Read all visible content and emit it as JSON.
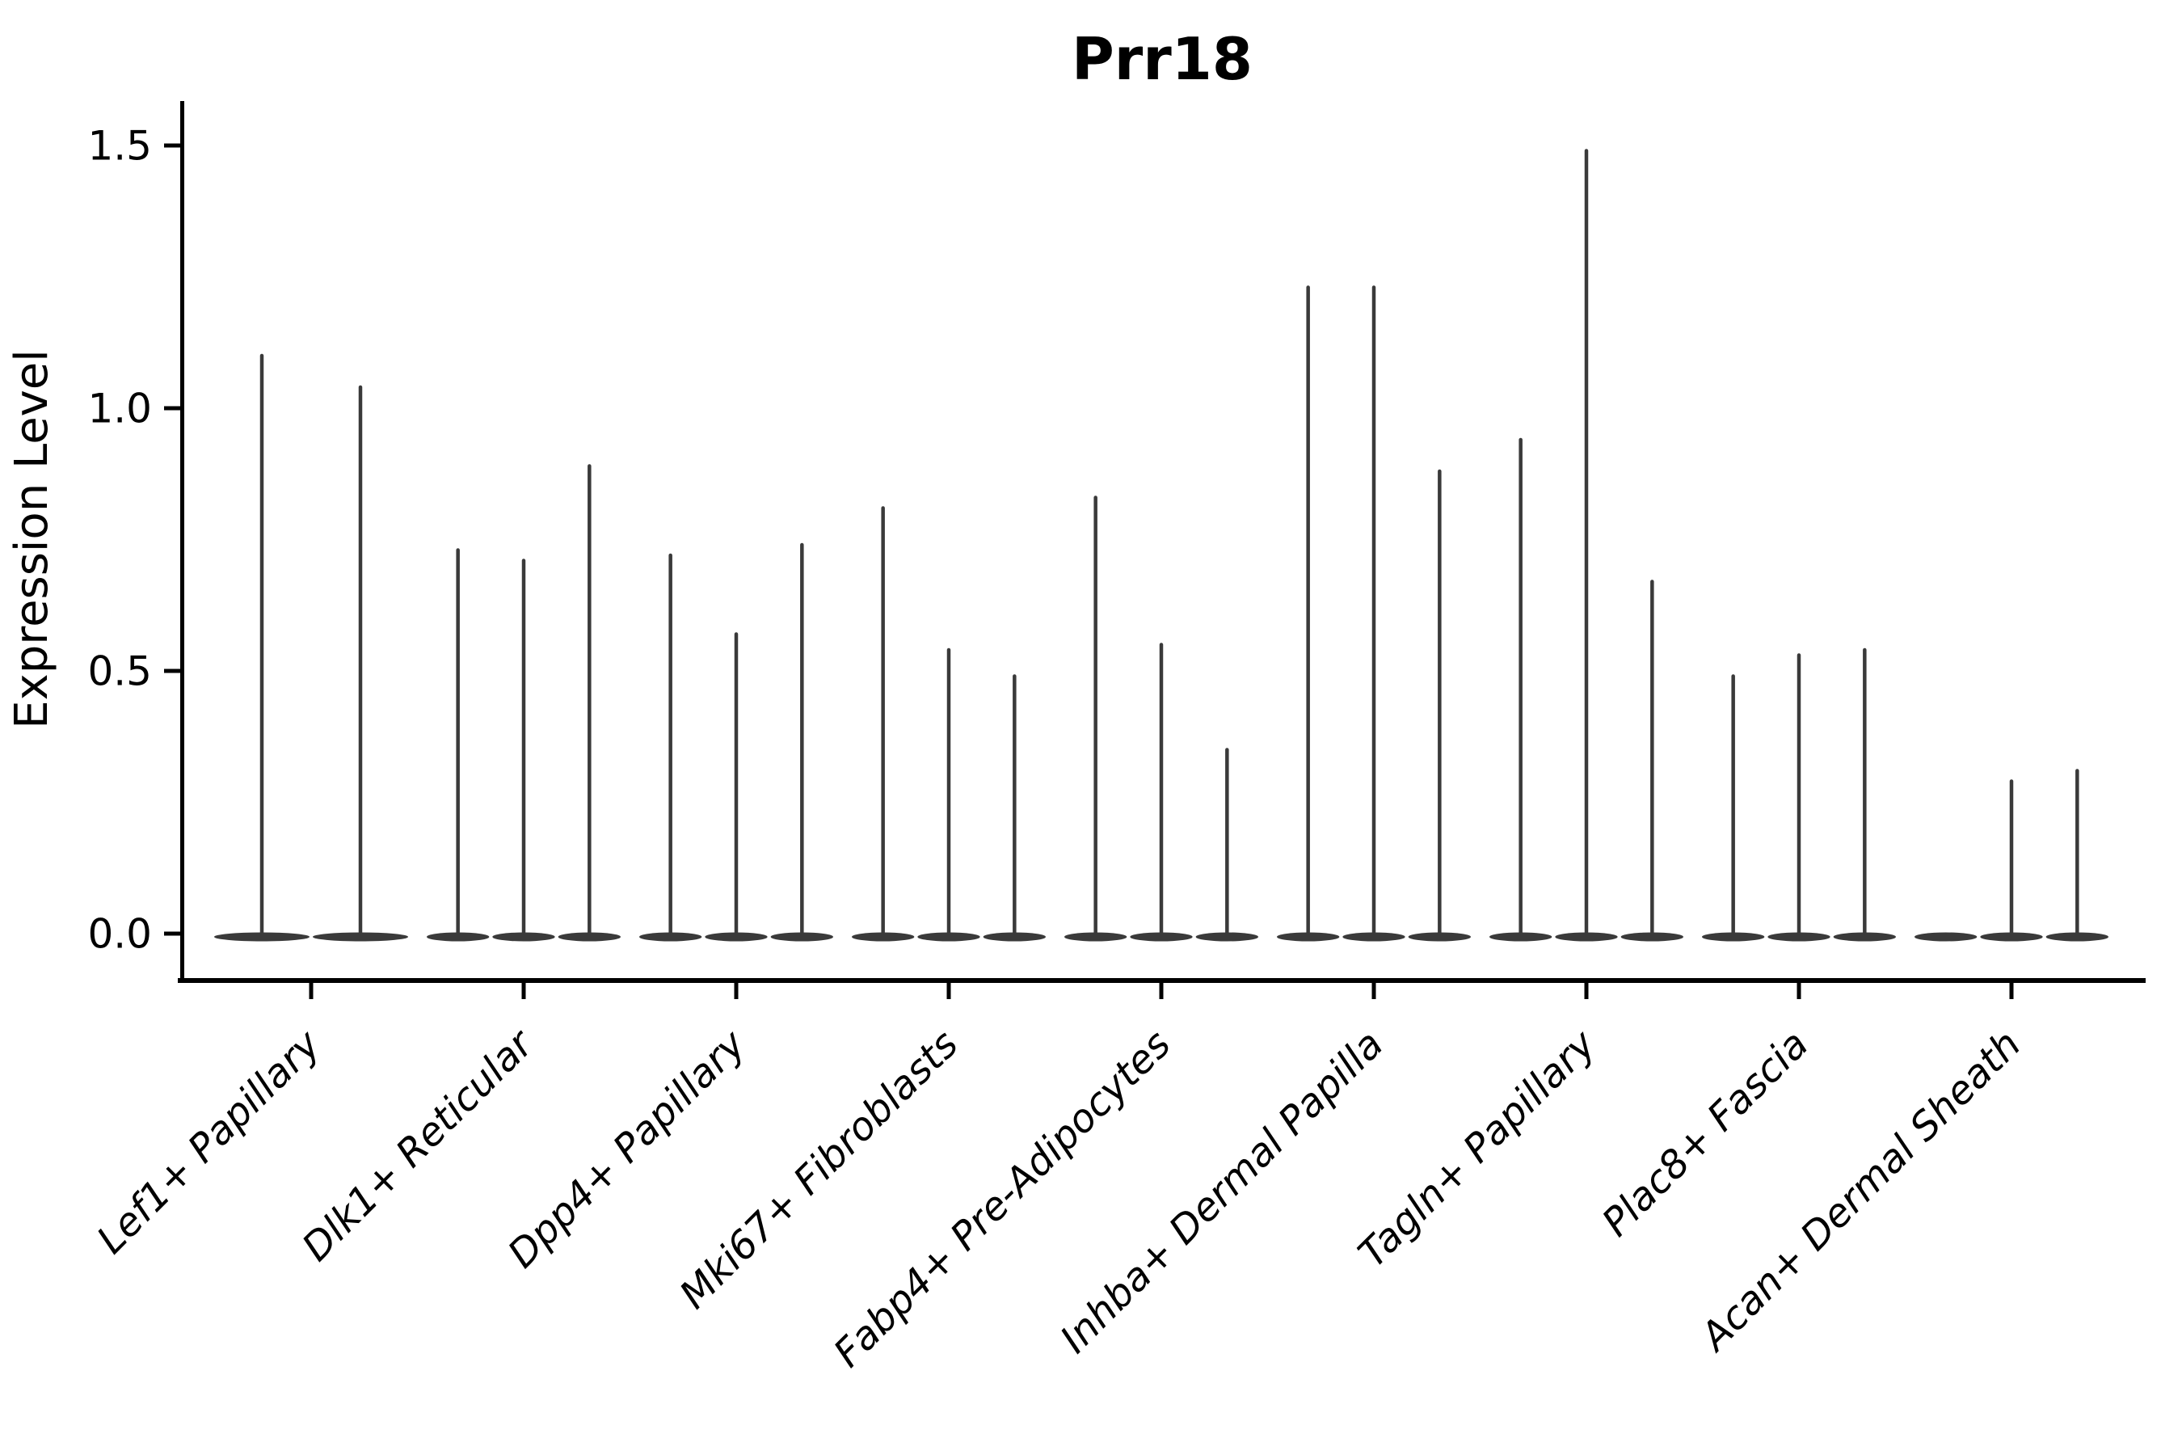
{
  "chart_data": {
    "type": "violin",
    "title": "Prr18",
    "xlabel": "",
    "ylabel": "Expression Level",
    "ylim": [
      0,
      1.58
    ],
    "yticks": [
      0.0,
      0.5,
      1.0,
      1.5
    ],
    "ytick_labels": [
      "0.0",
      "0.5",
      "1.0",
      "1.5"
    ],
    "grid": false,
    "legend": "none",
    "axis_color": "#000000",
    "violin_color": "#3a3a3a",
    "background_color": "#ffffff",
    "categories": [
      "Lef1+ Papillary",
      "Dlk1+ Reticular",
      "Dpp4+ Papillary",
      "Mki67+ Fibroblasts",
      "Fabp4+ Pre-Adipocytes",
      "Inhba+ Dermal Papilla",
      "Tagln+ Papillary",
      "Plac8+ Fascia",
      "Acan+ Dermal Sheath"
    ],
    "violin_maxima": [
      [
        1.1,
        1.04
      ],
      [
        0.73,
        0.71,
        0.89
      ],
      [
        0.72,
        0.57,
        0.74
      ],
      [
        0.81,
        0.54,
        0.49
      ],
      [
        0.83,
        0.55,
        0.35
      ],
      [
        1.23,
        1.23,
        0.88
      ],
      [
        0.94,
        1.49,
        0.67
      ],
      [
        0.49,
        0.53,
        0.54
      ],
      [
        0.0,
        0.29,
        0.31
      ]
    ],
    "baseline_value": 0.0,
    "description": "Zero-inflated expression violins: each violin is a wide flat bulge at 0 with a thin spike rising to its maximum expression value."
  }
}
